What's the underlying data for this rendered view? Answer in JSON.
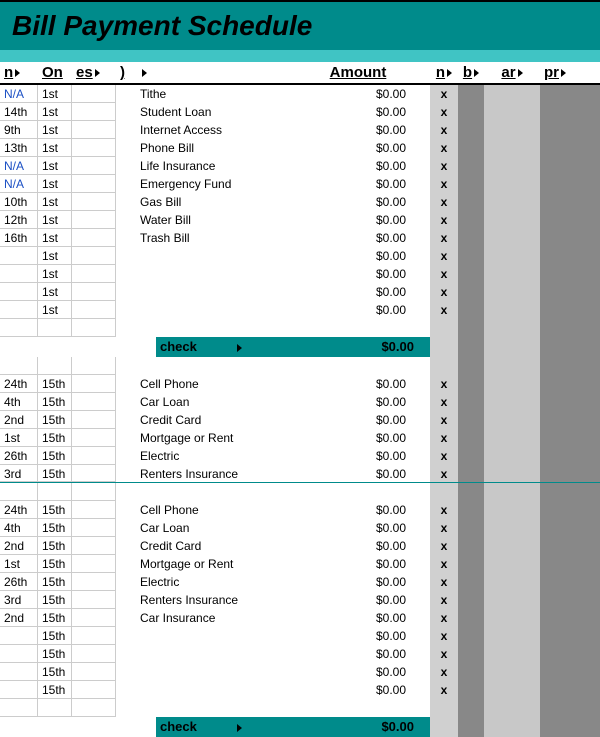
{
  "title": "Bill Payment Schedule",
  "colors": {
    "teal_dark": "#008b8b",
    "teal_light": "#40c4c4",
    "gray_light": "#d0d0d0",
    "gray_mid": "#c8c8c8",
    "gray_dark": "#888888",
    "link_blue": "#1a4fc4",
    "border": "#cccccc"
  },
  "headers": {
    "n1": "n",
    "on": "On",
    "es": "es",
    "par": ")",
    "amount": "Amount",
    "n2": "n",
    "b": "b",
    "ar": "ar",
    "pr": "pr"
  },
  "check": {
    "label": "check",
    "amount": "$0.00"
  },
  "section1": [
    {
      "n": "N/A",
      "on": "1st",
      "desc": "Tithe",
      "amt": "$0.00",
      "x": "x",
      "blue": true
    },
    {
      "n": "14th",
      "on": "1st",
      "desc": "Student Loan",
      "amt": "$0.00",
      "x": "x"
    },
    {
      "n": "9th",
      "on": "1st",
      "desc": "Internet Access",
      "amt": "$0.00",
      "x": "x"
    },
    {
      "n": "13th",
      "on": "1st",
      "desc": "Phone Bill",
      "amt": "$0.00",
      "x": "x"
    },
    {
      "n": "N/A",
      "on": "1st",
      "desc": "Life Insurance",
      "amt": "$0.00",
      "x": "x",
      "blue": true
    },
    {
      "n": "N/A",
      "on": "1st",
      "desc": "Emergency Fund",
      "amt": "$0.00",
      "x": "x",
      "blue": true
    },
    {
      "n": "10th",
      "on": "1st",
      "desc": "Gas Bill",
      "amt": "$0.00",
      "x": "x"
    },
    {
      "n": "12th",
      "on": "1st",
      "desc": "Water Bill",
      "amt": "$0.00",
      "x": "x"
    },
    {
      "n": "16th",
      "on": "1st",
      "desc": "Trash Bill",
      "amt": "$0.00",
      "x": "x"
    },
    {
      "n": "",
      "on": "1st",
      "desc": "",
      "amt": "$0.00",
      "x": "x"
    },
    {
      "n": "",
      "on": "1st",
      "desc": "",
      "amt": "$0.00",
      "x": "x"
    },
    {
      "n": "",
      "on": "1st",
      "desc": "",
      "amt": "$0.00",
      "x": "x"
    },
    {
      "n": "",
      "on": "1st",
      "desc": "",
      "amt": "$0.00",
      "x": "x"
    }
  ],
  "section2": [
    {
      "n": "24th",
      "on": "15th",
      "desc": "Cell Phone",
      "amt": "$0.00",
      "x": "x"
    },
    {
      "n": "4th",
      "on": "15th",
      "desc": "Car Loan",
      "amt": "$0.00",
      "x": "x"
    },
    {
      "n": "2nd",
      "on": "15th",
      "desc": "Credit Card",
      "amt": "$0.00",
      "x": "x"
    },
    {
      "n": "1st",
      "on": "15th",
      "desc": "Mortgage or Rent",
      "amt": "$0.00",
      "x": "x"
    },
    {
      "n": "26th",
      "on": "15th",
      "desc": "Electric",
      "amt": "$0.00",
      "x": "x"
    },
    {
      "n": "3rd",
      "on": "15th",
      "desc": "Renters Insurance",
      "amt": "$0.00",
      "x": "x"
    }
  ],
  "section3": [
    {
      "n": "24th",
      "on": "15th",
      "desc": "Cell Phone",
      "amt": "$0.00",
      "x": "x"
    },
    {
      "n": "4th",
      "on": "15th",
      "desc": "Car Loan",
      "amt": "$0.00",
      "x": "x"
    },
    {
      "n": "2nd",
      "on": "15th",
      "desc": "Credit Card",
      "amt": "$0.00",
      "x": "x"
    },
    {
      "n": "1st",
      "on": "15th",
      "desc": "Mortgage or Rent",
      "amt": "$0.00",
      "x": "x"
    },
    {
      "n": "26th",
      "on": "15th",
      "desc": "Electric",
      "amt": "$0.00",
      "x": "x"
    },
    {
      "n": "3rd",
      "on": "15th",
      "desc": "Renters Insurance",
      "amt": "$0.00",
      "x": "x"
    },
    {
      "n": "2nd",
      "on": "15th",
      "desc": "Car Insurance",
      "amt": "$0.00",
      "x": "x"
    },
    {
      "n": "",
      "on": "15th",
      "desc": "",
      "amt": "$0.00",
      "x": "x"
    },
    {
      "n": "",
      "on": "15th",
      "desc": "",
      "amt": "$0.00",
      "x": "x"
    },
    {
      "n": "",
      "on": "15th",
      "desc": "",
      "amt": "$0.00",
      "x": "x"
    },
    {
      "n": "",
      "on": "15th",
      "desc": "",
      "amt": "$0.00",
      "x": "x"
    }
  ]
}
